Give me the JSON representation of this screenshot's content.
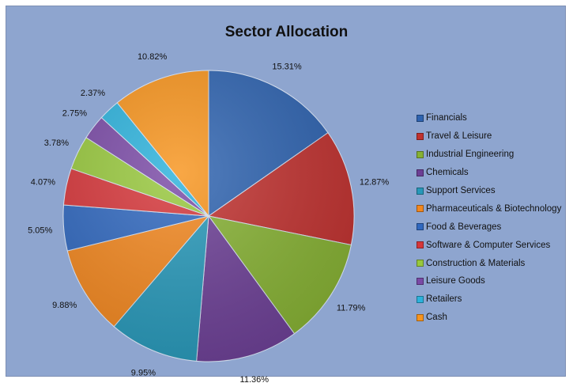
{
  "chart_data": {
    "type": "pie",
    "title": "Sector Allocation",
    "legend_position": "right",
    "start_angle_deg": 0,
    "direction": "clockwise",
    "slices": [
      {
        "label": "Financials",
        "value": 15.31,
        "value_label": "15.31%",
        "color": "#2e63b0"
      },
      {
        "label": "Travel & Leisure",
        "value": 12.87,
        "value_label": "12.87%",
        "color": "#c0312f"
      },
      {
        "label": "Industrial Engineering",
        "value": 11.79,
        "value_label": "11.79%",
        "color": "#86b133"
      },
      {
        "label": "Chemicals",
        "value": 11.36,
        "value_label": "11.36%",
        "color": "#6c3f95"
      },
      {
        "label": "Support Services",
        "value": 9.95,
        "value_label": "9.95%",
        "color": "#2798b9"
      },
      {
        "label": "Pharmaceuticals & Biotechnology",
        "value": 9.88,
        "value_label": "9.88%",
        "color": "#f2871f"
      },
      {
        "label": "Food & Beverages",
        "value": 5.05,
        "value_label": "5.05%",
        "color": "#3068bf"
      },
      {
        "label": "Software & Computer Services",
        "value": 4.07,
        "value_label": "4.07%",
        "color": "#d6363a"
      },
      {
        "label": "Construction & Materials",
        "value": 3.78,
        "value_label": "3.78%",
        "color": "#98c83d"
      },
      {
        "label": "Leisure Goods",
        "value": 2.75,
        "value_label": "2.75%",
        "color": "#7a4aa6"
      },
      {
        "label": "Retailers",
        "value": 2.37,
        "value_label": "2.37%",
        "color": "#2cb2dc"
      },
      {
        "label": "Cash",
        "value": 10.82,
        "value_label": "10.82%",
        "color": "#f7941d"
      }
    ]
  }
}
